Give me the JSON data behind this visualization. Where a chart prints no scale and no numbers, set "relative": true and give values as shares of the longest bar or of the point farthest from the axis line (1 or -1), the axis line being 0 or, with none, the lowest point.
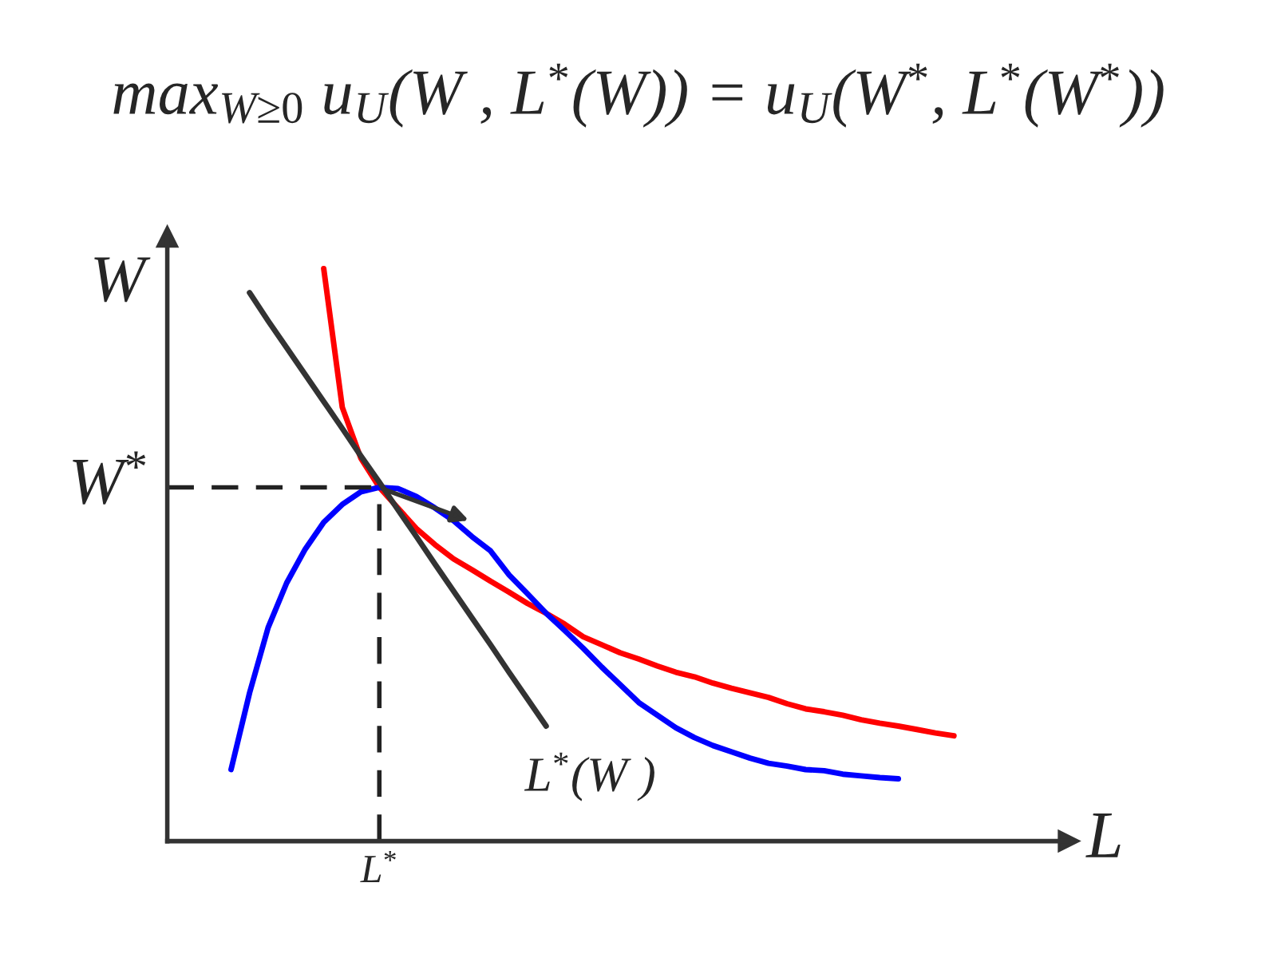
{
  "chart_data": {
    "type": "line",
    "relative": true,
    "title": "max$_{W≥0}$ u$_{U}$(W , L$^{*}$(W)) = u$_{U}$(W$^{*}$, L$^{*}$(W$^{*}$))",
    "xlabel": "L",
    "ylabel": "W",
    "marker": "none",
    "line_style": "solid",
    "categories": [
      null,
      null,
      null,
      null,
      null,
      null,
      null,
      null,
      null,
      null,
      null,
      null,
      null,
      null,
      null,
      null,
      null,
      null,
      null,
      null,
      null,
      null,
      null,
      null,
      null,
      null,
      null,
      null,
      null,
      null,
      null,
      null,
      null,
      null,
      null,
      null,
      null,
      null,
      null,
      null
    ],
    "series": [
      {
        "color": "#ff0000",
        "values": [
          null,
          null,
          null,
          null,
          null,
          1.0,
          0.758,
          0.669,
          0.618,
          0.582,
          0.546,
          0.518,
          0.493,
          0.474,
          0.454,
          0.435,
          0.415,
          0.398,
          0.379,
          0.357,
          0.343,
          0.329,
          0.318,
          0.306,
          0.295,
          0.287,
          0.276,
          0.267,
          0.259,
          0.251,
          0.24,
          0.231,
          0.226,
          0.22,
          0.212,
          0.206,
          0.201,
          0.195,
          0.189,
          0.184
        ]
      },
      {
        "color": "#0000ff",
        "values": [
          0.125,
          0.259,
          0.373,
          0.451,
          0.51,
          0.557,
          0.588,
          0.61,
          0.618,
          0.616,
          0.602,
          0.582,
          0.56,
          0.532,
          0.507,
          0.465,
          0.432,
          0.398,
          0.368,
          0.337,
          0.304,
          0.273,
          0.242,
          0.22,
          0.198,
          0.181,
          0.167,
          0.156,
          0.145,
          0.136,
          0.131,
          0.125,
          0.123,
          0.117,
          0.114,
          0.111,
          0.109,
          null,
          null,
          null
        ]
      },
      {
        "color": "#333333",
        "values": [
          null,
          0.958,
          0.909,
          0.862,
          0.815,
          0.768,
          0.721,
          0.673,
          0.627,
          0.579,
          0.532,
          0.484,
          0.437,
          0.39,
          0.343,
          0.295,
          0.248,
          0.201,
          null,
          null,
          null,
          null,
          null,
          null,
          null,
          null,
          null,
          null,
          null,
          null,
          null,
          null,
          null,
          null,
          null,
          null,
          null,
          null,
          null,
          null
        ]
      }
    ],
    "ref_lines": [
      {
        "axis": "y",
        "value": 0.618,
        "label": "W$^{*}$",
        "color": "#222222",
        "line_style": "dashed"
      }
    ],
    "annotations": [
      "L$^{*}$",
      "L$^{*}$(W )"
    ]
  }
}
